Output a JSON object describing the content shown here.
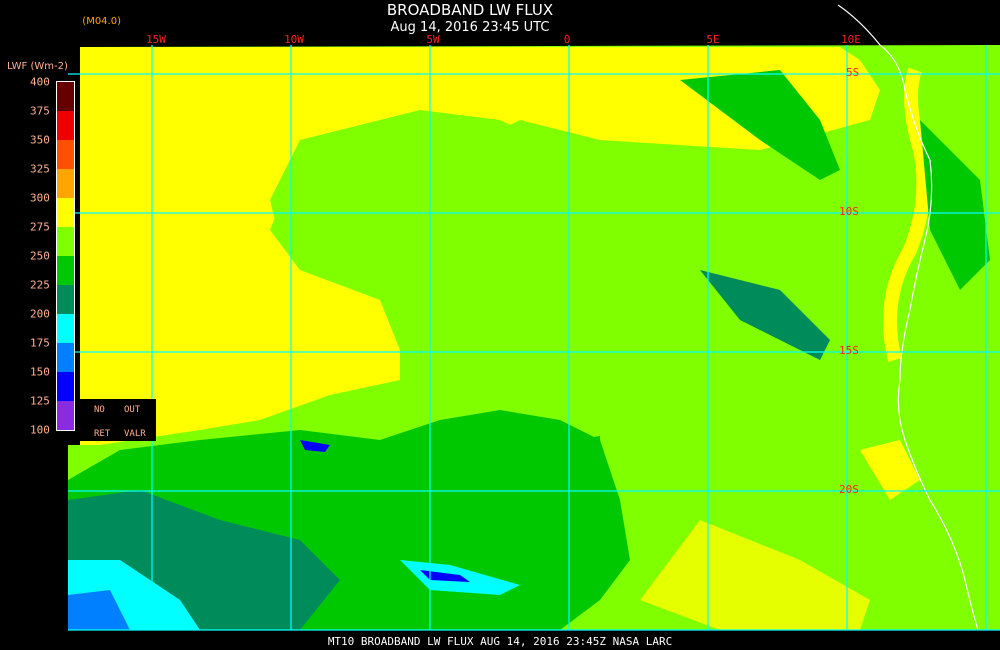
{
  "header": {
    "title": "BROADBAND LW FLUX",
    "subtitle": "Aug 14, 2016 23:45 UTC",
    "org": "NASA Langley (M04.0)"
  },
  "legend": {
    "unit": "LWF (Wm-2)",
    "ticks": [
      "400",
      "375",
      "350",
      "325",
      "300",
      "275",
      "250",
      "225",
      "200",
      "175",
      "150",
      "125",
      "100"
    ],
    "colors": [
      "#660000",
      "#ee0000",
      "#ff5000",
      "#ffa500",
      "#ffff00",
      "#80ff00",
      "#00c800",
      "#008c5a",
      "#00ffff",
      "#0080ff",
      "#0000ff",
      "#8a2be2"
    ],
    "no_ret": [
      "NO",
      "RET"
    ],
    "out_valr": [
      "OUT",
      "VALR"
    ]
  },
  "grid": {
    "lon_labels": [
      "15W",
      "10W",
      "5W",
      "0",
      "5E",
      "10E"
    ],
    "lat_labels": [
      "5S",
      "10S",
      "15S",
      "20S"
    ],
    "line_color": "#00ffff"
  },
  "footer": "MT10  BROADBAND LW FLUX   AUG 14, 2016 23:45Z   NASA LARC"
}
